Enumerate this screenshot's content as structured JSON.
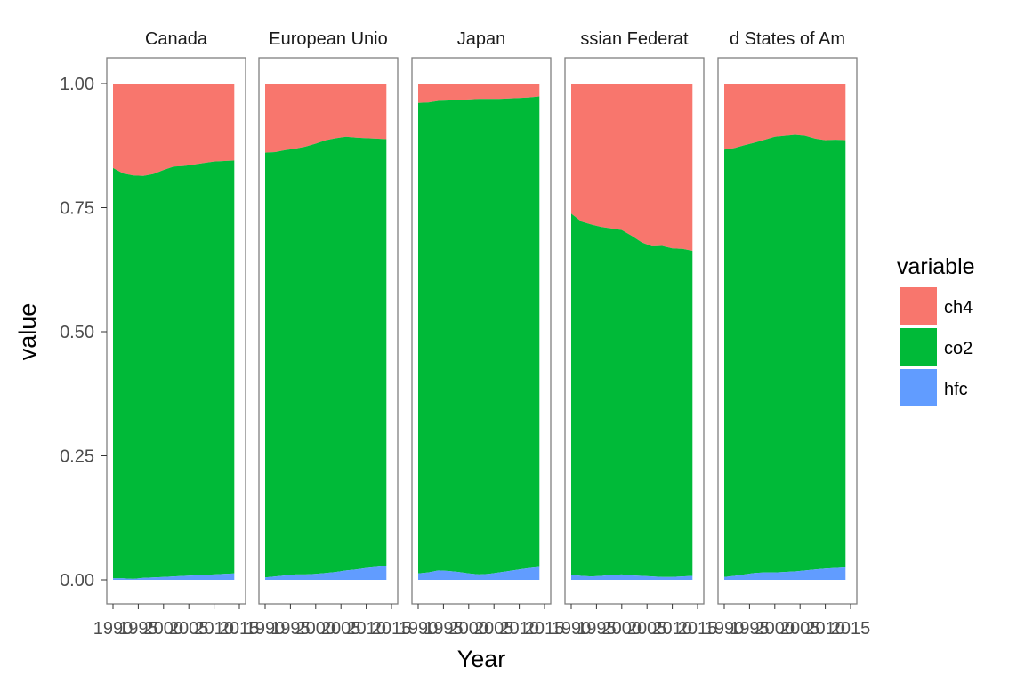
{
  "chart_data": {
    "type": "area",
    "stacked": "proportion",
    "facet_variable": "country",
    "facets": [
      "Canada",
      "European Union",
      "Japan",
      "Russian Federation",
      "United States of America"
    ],
    "facets_displayed": [
      "Canada",
      "European Unio",
      "Japan",
      "ssian Federat",
      "d States of Am"
    ],
    "xlabel": "Year",
    "ylabel": "value",
    "x_range": [
      1990,
      2014
    ],
    "ylim": [
      0,
      1
    ],
    "x_ticks": [
      "1990",
      "1995",
      "2000",
      "2005",
      "2010",
      "2015"
    ],
    "y_ticks": [
      "0.00",
      "0.25",
      "0.50",
      "0.75",
      "1.00"
    ],
    "legend": {
      "title": "variable",
      "position": "right",
      "entries": [
        {
          "name": "ch4",
          "color": "#F8766D"
        },
        {
          "name": "co2",
          "color": "#00BA38"
        },
        {
          "name": "hfc",
          "color": "#619CFF"
        }
      ]
    },
    "stack_order_bottom_to_top": [
      "hfc",
      "co2",
      "ch4"
    ],
    "x": [
      1990,
      1992,
      1994,
      1996,
      1998,
      2000,
      2002,
      2004,
      2006,
      2008,
      2010,
      2012,
      2014
    ],
    "panels": [
      {
        "facet": "Canada",
        "hfc": [
          0.003,
          0.003,
          0.002,
          0.004,
          0.005,
          0.006,
          0.007,
          0.008,
          0.009,
          0.01,
          0.011,
          0.012,
          0.013
        ],
        "co2_top": [
          0.83,
          0.819,
          0.815,
          0.814,
          0.818,
          0.826,
          0.833,
          0.834,
          0.837,
          0.84,
          0.843,
          0.844,
          0.845
        ]
      },
      {
        "facet": "European Union",
        "hfc": [
          0.005,
          0.007,
          0.009,
          0.011,
          0.011,
          0.012,
          0.014,
          0.016,
          0.019,
          0.021,
          0.024,
          0.026,
          0.028
        ],
        "co2_top": [
          0.861,
          0.862,
          0.866,
          0.869,
          0.873,
          0.879,
          0.886,
          0.89,
          0.893,
          0.891,
          0.89,
          0.889,
          0.888
        ]
      },
      {
        "facet": "Japan",
        "hfc": [
          0.013,
          0.015,
          0.019,
          0.018,
          0.016,
          0.013,
          0.011,
          0.012,
          0.015,
          0.018,
          0.021,
          0.024,
          0.026
        ],
        "co2_top": [
          0.961,
          0.962,
          0.965,
          0.966,
          0.967,
          0.968,
          0.969,
          0.969,
          0.969,
          0.97,
          0.971,
          0.972,
          0.974
        ]
      },
      {
        "facet": "Russian Federation",
        "hfc": [
          0.01,
          0.008,
          0.007,
          0.008,
          0.01,
          0.011,
          0.009,
          0.008,
          0.007,
          0.006,
          0.006,
          0.007,
          0.008
        ],
        "co2_top": [
          0.738,
          0.722,
          0.716,
          0.711,
          0.708,
          0.705,
          0.693,
          0.68,
          0.672,
          0.673,
          0.668,
          0.667,
          0.663
        ]
      },
      {
        "facet": "United States of America",
        "hfc": [
          0.006,
          0.008,
          0.011,
          0.014,
          0.015,
          0.015,
          0.016,
          0.017,
          0.019,
          0.021,
          0.023,
          0.024,
          0.025
        ],
        "co2_top": [
          0.867,
          0.87,
          0.876,
          0.881,
          0.887,
          0.893,
          0.895,
          0.897,
          0.895,
          0.889,
          0.886,
          0.887,
          0.886
        ]
      }
    ]
  }
}
